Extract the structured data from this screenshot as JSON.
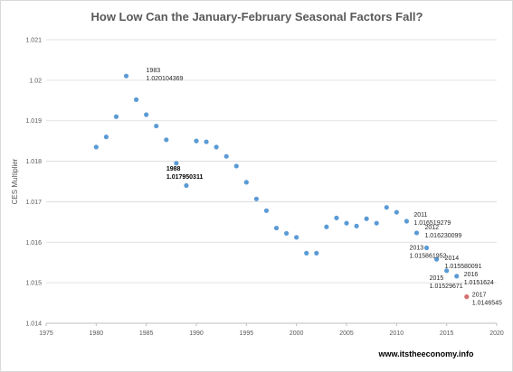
{
  "chart_data": {
    "type": "scatter",
    "title": "How Low Can the January-February  Seasonal Factors Fall?",
    "ylabel": "CES Multiplier",
    "xlabel": "",
    "xlim": [
      1975,
      2020
    ],
    "ylim": [
      1.014,
      1.021
    ],
    "xticks": [
      1975,
      1980,
      1985,
      1990,
      1995,
      2000,
      2005,
      2010,
      2015,
      2020
    ],
    "yticks": [
      "1.014",
      "1.015",
      "1.016",
      "1.017",
      "1.018",
      "1.019",
      "1.02",
      "1.021"
    ],
    "ytick_values": [
      1.014,
      1.015,
      1.016,
      1.017,
      1.018,
      1.019,
      1.02,
      1.021
    ],
    "grid": "horizontal",
    "series": [
      {
        "color": "#5b9bd5",
        "x": [
          1980,
          1981,
          1982,
          1983,
          1984,
          1985,
          1986,
          1987,
          1988,
          1989,
          1990,
          1991,
          1992,
          1993,
          1994,
          1995,
          1996,
          1997,
          1998,
          1999,
          2000,
          2001,
          2002,
          2003,
          2004,
          2005,
          2006,
          2007,
          2008,
          2009,
          2010,
          2011,
          2012,
          2013,
          2014,
          2015,
          2016
        ],
        "y": [
          1.01835,
          1.0186,
          1.0191,
          1.020104369,
          1.01952,
          1.01915,
          1.01887,
          1.01853,
          1.017950311,
          1.0174,
          1.0185,
          1.01848,
          1.01835,
          1.01812,
          1.01788,
          1.01748,
          1.01707,
          1.01678,
          1.01635,
          1.01622,
          1.01612,
          1.01573,
          1.01573,
          1.01638,
          1.0166,
          1.01647,
          1.0164,
          1.01658,
          1.01647,
          1.01686,
          1.01674,
          1.016519279,
          1.016230099,
          1.015861952,
          1.015580091,
          1.01529671,
          1.0151624
        ]
      },
      {
        "color": "#d36f6f",
        "x": [
          2017
        ],
        "y": [
          1.0146545
        ]
      }
    ],
    "annotations": [
      {
        "year": "1983",
        "value": "1.020104369",
        "x": 1983,
        "y": 1.020104369,
        "bold": false
      },
      {
        "year": "1988",
        "value": "1.017950311",
        "x": 1988,
        "y": 1.017950311,
        "bold": true
      },
      {
        "year": "2011",
        "value": "1.016519279",
        "x": 2011,
        "y": 1.016519279,
        "bold": false
      },
      {
        "year": "2012",
        "value": "1.016230099",
        "x": 2012,
        "y": 1.016230099,
        "bold": false
      },
      {
        "year": "2013",
        "value": "1.015861952",
        "x": 2013,
        "y": 1.015861952,
        "bold": false
      },
      {
        "year": "2014",
        "value": "1.015580091",
        "x": 2014,
        "y": 1.015580091,
        "bold": false
      },
      {
        "year": "2015",
        "value": "1.01529671",
        "x": 2015,
        "y": 1.01529671,
        "bold": false
      },
      {
        "year": "2016",
        "value": "1.0151624",
        "x": 2016,
        "y": 1.0151624,
        "bold": false
      },
      {
        "year": "2017",
        "value": "1.0146545",
        "x": 2017,
        "y": 1.0146545,
        "bold": false
      }
    ]
  },
  "footer": {
    "source": "www.itstheeconomy.info"
  }
}
